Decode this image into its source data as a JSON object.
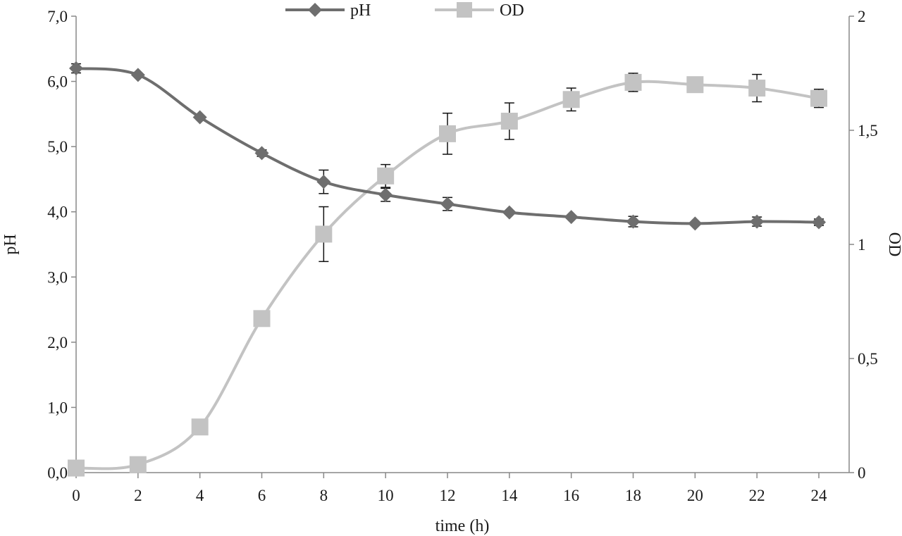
{
  "chart_data": {
    "type": "line",
    "x": [
      0,
      2,
      4,
      6,
      8,
      10,
      12,
      14,
      16,
      18,
      20,
      22,
      24
    ],
    "x_ticks": [
      "0",
      "2",
      "4",
      "6",
      "8",
      "10",
      "12",
      "14",
      "16",
      "18",
      "20",
      "22",
      "24"
    ],
    "xlabel": "time (h)",
    "xlim": [
      0,
      24
    ],
    "y_left": {
      "label": "pH",
      "lim": [
        0,
        7
      ],
      "ticks": [
        "0,0",
        "1,0",
        "2,0",
        "3,0",
        "4,0",
        "5,0",
        "6,0",
        "7,0"
      ]
    },
    "y_right": {
      "label": "OD",
      "lim": [
        0,
        2
      ],
      "ticks": [
        "0",
        "0,5",
        "1",
        "1,5",
        "2"
      ]
    },
    "series": [
      {
        "name": "pH",
        "axis": "left",
        "marker": "diamond",
        "color": "#6e6e6e",
        "values": [
          6.2,
          6.1,
          5.45,
          4.9,
          4.46,
          4.26,
          4.12,
          3.99,
          3.92,
          3.85,
          3.82,
          3.85,
          3.84
        ],
        "error": [
          0.07,
          0,
          0,
          0.05,
          0.18,
          0.1,
          0.1,
          0,
          0,
          0.08,
          0,
          0.07,
          0.05
        ]
      },
      {
        "name": "OD",
        "axis": "right",
        "marker": "square",
        "color": "#c3c3c3",
        "values": [
          0.02,
          0.035,
          0.2,
          0.675,
          1.045,
          1.3,
          1.485,
          1.54,
          1.635,
          1.71,
          1.7,
          1.685,
          1.64
        ],
        "error": [
          0,
          0,
          0,
          0,
          0.12,
          0.05,
          0.09,
          0.08,
          0.05,
          0.04,
          0,
          0.06,
          0.04
        ]
      }
    ],
    "legend_position": "top-center",
    "grid": false,
    "axis_color": "#888888"
  }
}
